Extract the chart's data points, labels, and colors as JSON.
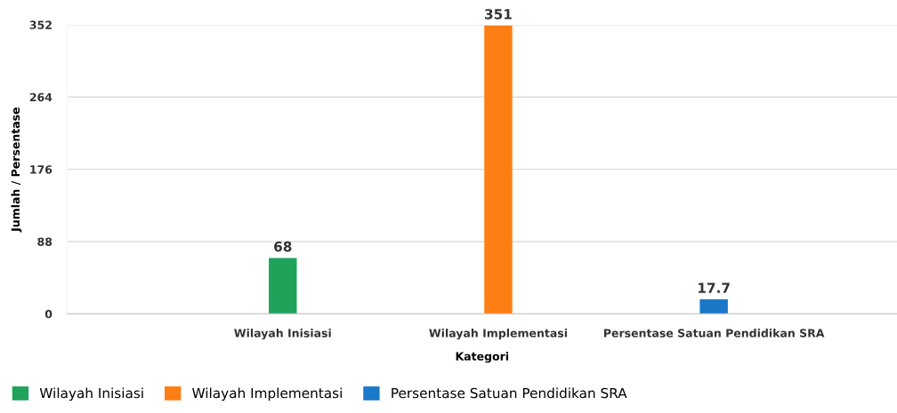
{
  "chart_data": {
    "type": "bar",
    "xlabel": "Kategori",
    "ylabel": "Jumlah / Persentase",
    "categories": [
      "Wilayah Inisiasi",
      "Wilayah Implementasi",
      "Persentase Satuan Pendidikan SRA"
    ],
    "series": [
      {
        "name": "Wilayah Inisiasi",
        "color": "#1fa35b",
        "values": [
          68,
          null,
          null
        ]
      },
      {
        "name": "Wilayah Implementasi",
        "color": "#fd7e14",
        "values": [
          null,
          351,
          null
        ]
      },
      {
        "name": "Persentase Satuan Pendidikan SRA",
        "color": "#1a78c8",
        "values": [
          null,
          null,
          17.7
        ]
      }
    ],
    "ylim": [
      0,
      352
    ],
    "yticks": [
      0,
      88,
      176,
      264,
      352
    ],
    "grid": "y",
    "legend": "bottom left",
    "data_labels": true
  }
}
